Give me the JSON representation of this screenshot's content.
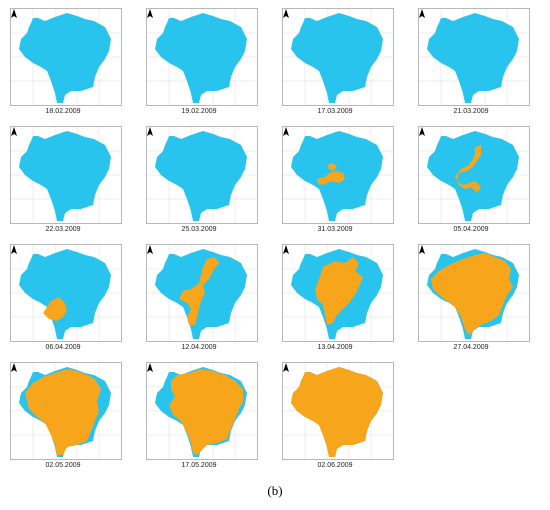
{
  "figure": {
    "label": "(b)",
    "colors": {
      "class_a": "#29c4ee",
      "class_b": "#f7a51b",
      "graticule": "#cfcfcf"
    },
    "panels": [
      {
        "date": "18.02.2009",
        "orange_extent": "none"
      },
      {
        "date": "19.02.2009",
        "orange_extent": "none"
      },
      {
        "date": "17.03.2009",
        "orange_extent": "none"
      },
      {
        "date": "21.03.2009",
        "orange_extent": "none"
      },
      {
        "date": "22.03.2009",
        "orange_extent": "none"
      },
      {
        "date": "25.03.2009",
        "orange_extent": "none"
      },
      {
        "date": "31.03.2009",
        "orange_extent": "small central patches"
      },
      {
        "date": "05.04.2009",
        "orange_extent": "central corridor"
      },
      {
        "date": "06.04.2009",
        "orange_extent": "southern patch"
      },
      {
        "date": "12.04.2009",
        "orange_extent": "central band"
      },
      {
        "date": "13.04.2009",
        "orange_extent": "large central area"
      },
      {
        "date": "27.04.2009",
        "orange_extent": "most of area"
      },
      {
        "date": "02.05.2009",
        "orange_extent": "most of area, blue margins"
      },
      {
        "date": "17.05.2009",
        "orange_extent": "most of area, blue west and edges"
      },
      {
        "date": "02.06.2009",
        "orange_extent": "entire area"
      }
    ]
  }
}
